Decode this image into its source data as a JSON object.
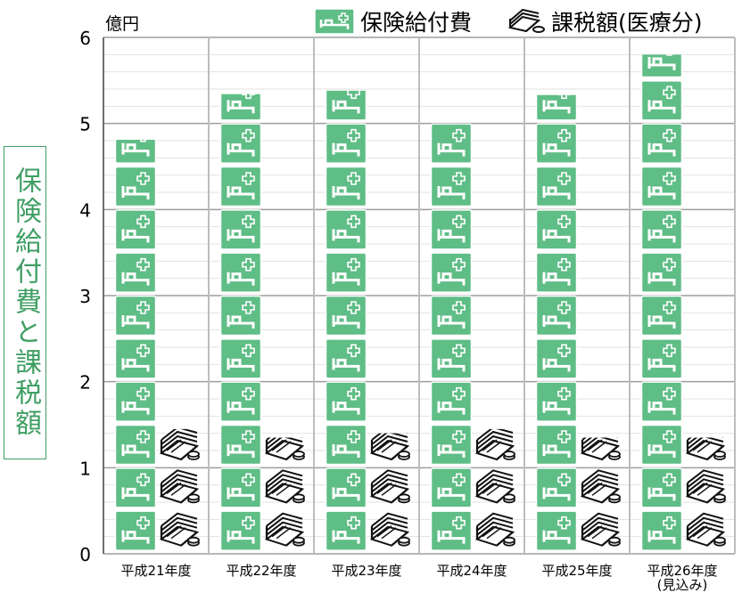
{
  "side_title": "保険給付費と課税額",
  "legend": {
    "benefits": "保険給付費",
    "tax": "課税額(医療分)"
  },
  "colors": {
    "benefit_fill": "#5fbd86",
    "benefit_edge": "#ffffff",
    "tax_ink": "#111111",
    "grid": "#bdbdbd",
    "title_green": "#3f9e63"
  },
  "icons": {
    "benefits": "hospital-bed-icon",
    "tax": "money-stack-icon"
  },
  "chart_data": {
    "type": "bar",
    "pictograph": true,
    "unit_label": "億円",
    "categories": [
      "平成21年度",
      "平成22年度",
      "平成23年度",
      "平成24年度",
      "平成25年度",
      "平成26年度"
    ],
    "category_sublabels": [
      "",
      "",
      "",
      "",
      "",
      "(見込み)"
    ],
    "series": [
      {
        "name": "保険給付費",
        "values": [
          4.81,
          5.34,
          5.38,
          5.0,
          5.33,
          5.8
        ]
      },
      {
        "name": "課税額(医療分)",
        "values": [
          1.45,
          1.35,
          1.4,
          1.45,
          1.35,
          1.35
        ]
      }
    ],
    "ylim": [
      0,
      6
    ],
    "yticks": [
      0,
      1,
      2,
      3,
      4,
      5,
      6
    ],
    "grid": true
  }
}
